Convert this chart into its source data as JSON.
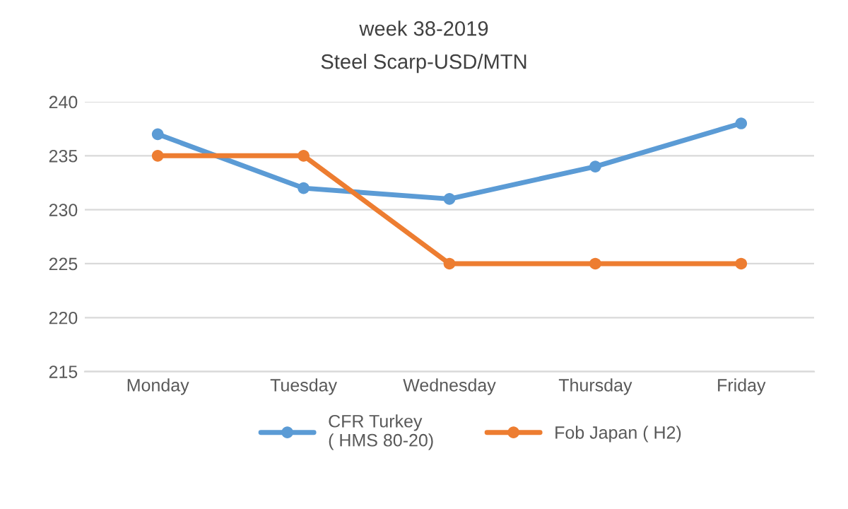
{
  "chart_data": {
    "type": "line",
    "title": "week 38-2019",
    "subtitle": "Steel Scarp-USD/MTN",
    "categories": [
      "Monday",
      "Tuesday",
      "Wednesday",
      "Thursday",
      "Friday"
    ],
    "series": [
      {
        "name": "CFR Turkey\n( HMS 80-20)",
        "color": "#5b9bd5",
        "values": [
          237,
          232,
          231,
          234,
          238
        ]
      },
      {
        "name": "Fob Japan ( H2)",
        "color": "#ed7d31",
        "values": [
          235,
          235,
          225,
          225,
          225
        ]
      }
    ],
    "ylim": [
      215,
      240
    ],
    "yticks": [
      215,
      220,
      225,
      230,
      235,
      240
    ],
    "grid": "y",
    "legend": "bottom",
    "marker": "circle",
    "line_style": "solid"
  }
}
